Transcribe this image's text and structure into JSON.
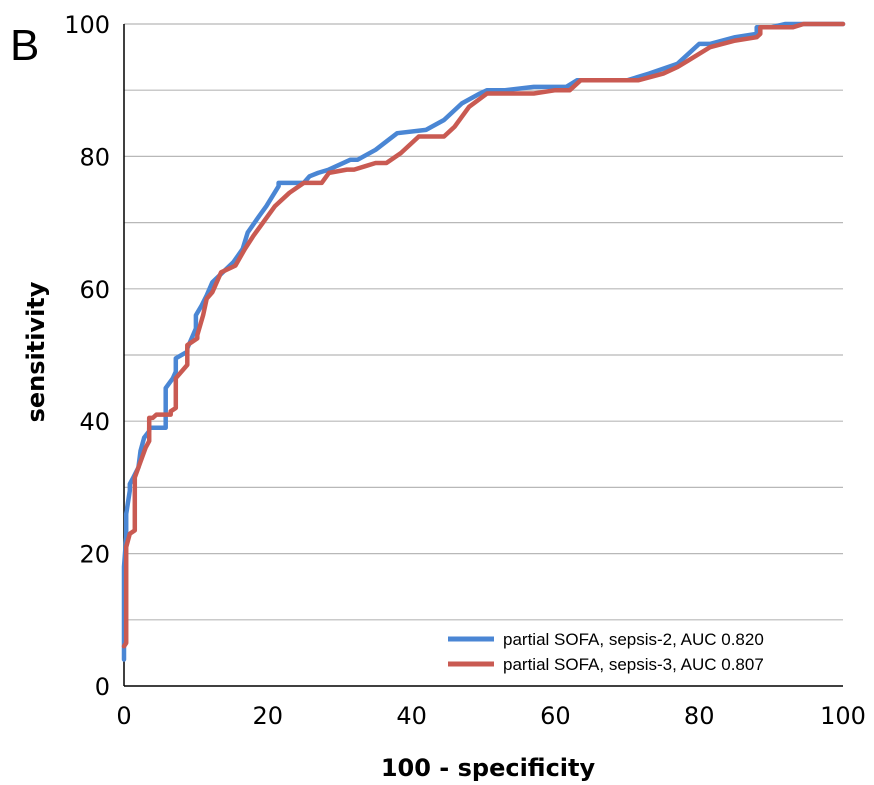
{
  "panel_label": "B",
  "chart_data": {
    "type": "line",
    "title": "",
    "xlabel": "100 - specificity",
    "ylabel": "sensitivity",
    "xlim": [
      0,
      100
    ],
    "ylim": [
      0,
      100
    ],
    "x_ticks": [
      0,
      20,
      40,
      60,
      80,
      100
    ],
    "y_ticks": [
      0,
      20,
      40,
      60,
      80,
      100
    ],
    "y_gridlines": [
      10,
      20,
      30,
      40,
      50,
      60,
      70,
      80,
      90,
      100
    ],
    "grid": true,
    "legend_position": "bottom-right",
    "series": [
      {
        "name": "partial SOFA, sepsis-2, AUC 0.820",
        "color": "#4a86d4",
        "x": [
          0,
          0,
          0.3,
          0.3,
          0.8,
          0.8,
          1.3,
          2,
          2.3,
          2.8,
          3.5,
          3.5,
          5.8,
          5.8,
          6.8,
          7.2,
          7.2,
          8.8,
          8.8,
          10,
          10,
          10.8,
          11.5,
          12.3,
          15.2,
          16.5,
          17.2,
          18.8,
          19.8,
          21.5,
          21.5,
          25,
          25.8,
          27,
          28.5,
          31.5,
          32.5,
          35,
          38,
          42,
          44.5,
          47,
          49.5,
          50.5,
          53,
          57,
          60,
          61.5,
          63,
          66,
          70,
          73,
          77,
          78.5,
          80,
          81.5,
          85,
          88,
          88,
          90,
          92,
          94,
          100
        ],
        "y": [
          4,
          18,
          22.5,
          26,
          29.5,
          30.5,
          31.5,
          33,
          35.5,
          37.5,
          38.5,
          39,
          39,
          45,
          46.5,
          47.5,
          49.5,
          50.5,
          51,
          54,
          56,
          57.5,
          59,
          61,
          64,
          66,
          68.5,
          71,
          72.5,
          75.5,
          76,
          76,
          77,
          77.5,
          78,
          79.5,
          79.5,
          81,
          83.5,
          84,
          85.5,
          88,
          89.5,
          90,
          90,
          90.5,
          90.5,
          90.5,
          91.5,
          91.5,
          91.5,
          92.5,
          94,
          95.5,
          97,
          97,
          98,
          98.5,
          99.5,
          99.5,
          100,
          100,
          100
        ]
      },
      {
        "name": "partial SOFA, sepsis-3, AUC 0.807",
        "color": "#c95a52",
        "x": [
          0,
          0.3,
          0.3,
          0.8,
          1.5,
          1.5,
          2,
          2.5,
          3,
          3.5,
          3.5,
          4,
          4.5,
          5.5,
          6.5,
          6.5,
          7.2,
          7.2,
          8.8,
          8.8,
          10.2,
          10.2,
          11,
          11.5,
          12.3,
          13.5,
          15.5,
          16.8,
          18,
          19,
          21,
          23,
          25,
          27.5,
          28.5,
          31,
          32,
          33.5,
          35,
          36.5,
          38.5,
          41,
          44.5,
          46,
          48,
          50.5,
          53.5,
          57,
          60,
          62,
          63.5,
          66,
          71.5,
          75,
          77,
          78.5,
          80,
          81.5,
          85,
          88,
          88.5,
          88.5,
          90,
          93,
          94.5,
          100
        ],
        "y": [
          6,
          6.5,
          21,
          23,
          23.5,
          31.5,
          33,
          34.5,
          36,
          37,
          40.5,
          40.5,
          41,
          41,
          41,
          41.5,
          42,
          46.5,
          48.5,
          51.5,
          52.5,
          53,
          56,
          58.5,
          59.5,
          62.5,
          63.5,
          66,
          68,
          69.5,
          72.5,
          74.5,
          76,
          76,
          77.5,
          78,
          78,
          78.5,
          79,
          79,
          80.5,
          83,
          83,
          84.5,
          87.5,
          89.5,
          89.5,
          89.5,
          90,
          90,
          91.5,
          91.5,
          91.5,
          92.5,
          93.5,
          94.5,
          95.5,
          96.5,
          97.5,
          98,
          98.5,
          99.5,
          99.5,
          99.5,
          100,
          100
        ]
      }
    ]
  }
}
